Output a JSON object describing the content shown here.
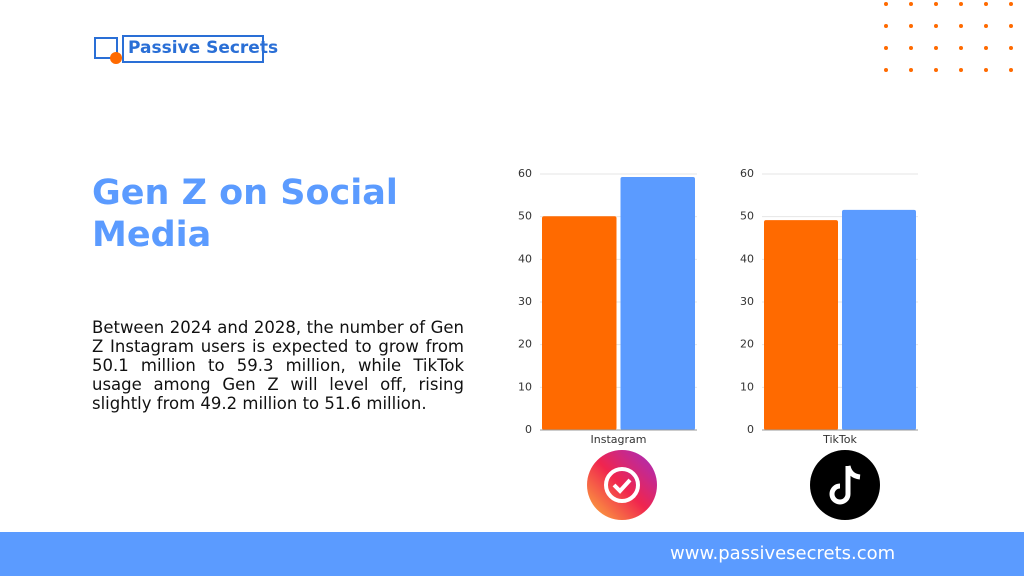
{
  "logo": "Passive Secrets",
  "title": "Gen Z on Social Media",
  "body": "Between 2024 and 2028, the number of Gen Z Instagram users is expected to grow from 50.1 million to 59.3 million, while TikTok usage among Gen Z will level off, rising slightly from 49.2 million to 51.6 million.",
  "footer": "www.passivesecrets.com",
  "chart_data": [
    {
      "type": "bar",
      "xlabel": "Instagram",
      "categories": [
        null,
        null
      ],
      "values": [
        50.1,
        59.3
      ],
      "colors": [
        "#ff6a00",
        "#5b9bff"
      ],
      "ylim": [
        0,
        60
      ],
      "yticks": [
        0,
        10,
        20,
        30,
        40,
        50,
        60
      ],
      "grid": true
    },
    {
      "type": "bar",
      "xlabel": "TikTok",
      "categories": [
        null,
        null
      ],
      "values": [
        49.2,
        51.6
      ],
      "colors": [
        "#ff6a00",
        "#5b9bff"
      ],
      "ylim": [
        0,
        60
      ],
      "yticks": [
        0,
        10,
        20,
        30,
        40,
        50,
        60
      ],
      "grid": true
    }
  ]
}
